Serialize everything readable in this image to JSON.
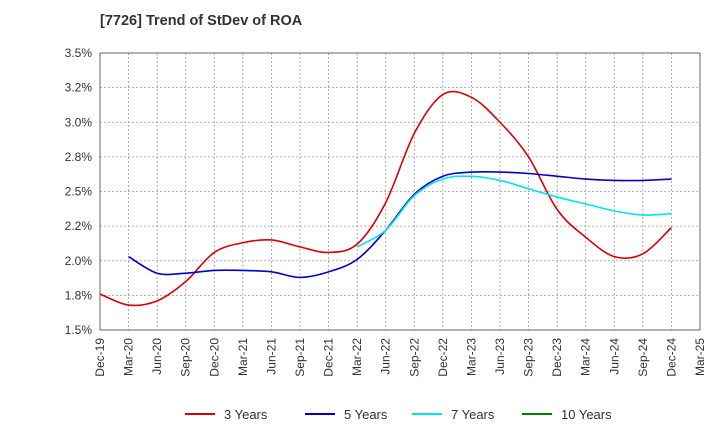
{
  "chart_data": {
    "type": "line",
    "title": "[7726]  Trend of StDev of ROA",
    "xlabel": "",
    "ylabel": "",
    "x": [
      "Dec-19",
      "Mar-20",
      "Jun-20",
      "Sep-20",
      "Dec-20",
      "Mar-21",
      "Jun-21",
      "Sep-21",
      "Dec-21",
      "Mar-22",
      "Jun-22",
      "Sep-22",
      "Dec-22",
      "Mar-23",
      "Jun-23",
      "Sep-23",
      "Dec-23",
      "Mar-24",
      "Jun-24",
      "Sep-24",
      "Dec-24",
      "Mar-25"
    ],
    "ylim": [
      1.5,
      3.5
    ],
    "yticks": [
      1.5,
      1.75,
      2.0,
      2.25,
      2.5,
      2.75,
      3.0,
      3.25,
      3.5
    ],
    "ytick_labels": [
      "1.5%",
      "1.8%",
      "2.0%",
      "2.2%",
      "2.5%",
      "2.8%",
      "3.0%",
      "3.2%",
      "3.5%"
    ],
    "grid": true,
    "legend_position": "bottom",
    "series": [
      {
        "name": "3 Years",
        "color": "#dd0000",
        "values": [
          1.76,
          1.68,
          1.71,
          1.85,
          2.06,
          2.13,
          2.15,
          2.1,
          2.06,
          2.12,
          2.42,
          2.92,
          3.2,
          3.18,
          3.0,
          2.75,
          2.37,
          2.17,
          2.03,
          2.05,
          2.24,
          null
        ]
      },
      {
        "name": "5 Years",
        "color": "#0000cc",
        "values": [
          null,
          2.03,
          1.91,
          1.91,
          1.93,
          1.93,
          1.92,
          1.88,
          1.92,
          2.01,
          2.22,
          2.48,
          2.61,
          2.64,
          2.64,
          2.63,
          2.61,
          2.59,
          2.58,
          2.58,
          2.59,
          null
        ]
      },
      {
        "name": "7 Years",
        "color": "#00e5ee",
        "values": [
          null,
          null,
          null,
          null,
          null,
          null,
          null,
          null,
          null,
          2.1,
          2.22,
          2.47,
          2.59,
          2.61,
          2.58,
          2.52,
          2.46,
          2.41,
          2.36,
          2.33,
          2.34,
          null
        ]
      },
      {
        "name": "10 Years",
        "color": "#008000",
        "values": [
          null,
          null,
          null,
          null,
          null,
          null,
          null,
          null,
          null,
          null,
          null,
          null,
          null,
          null,
          null,
          null,
          null,
          null,
          null,
          null,
          null,
          null
        ]
      }
    ]
  }
}
